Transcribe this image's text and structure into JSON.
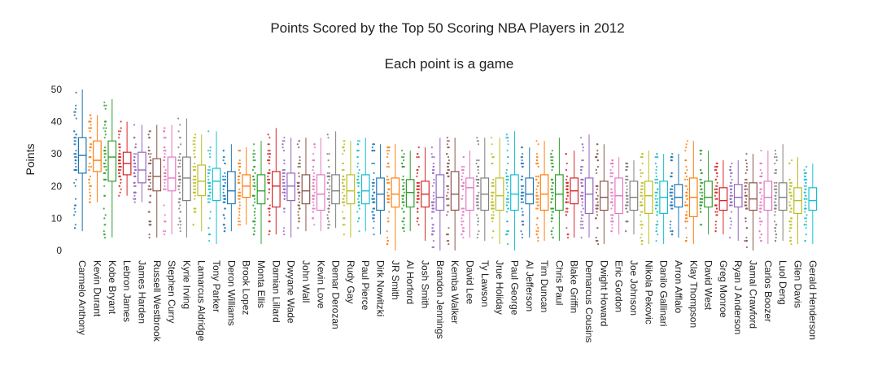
{
  "chart_data": {
    "type": "box",
    "title": "Points Scored by the Top 50 Scoring NBA Players in 2012",
    "subtitle": "Each point is a game",
    "xlabel": "",
    "ylabel": "Points",
    "ylim": [
      0,
      52
    ],
    "yticks": [
      0,
      10,
      20,
      30,
      40,
      50
    ],
    "grid": false,
    "legend": "none",
    "points_shown": "all",
    "palette": [
      "#1f77b4",
      "#ff7f0e",
      "#2ca02c",
      "#d62728",
      "#9467bd",
      "#8c564b",
      "#e377c2",
      "#7f7f7f",
      "#bcbd22",
      "#17becf"
    ],
    "series": [
      {
        "name": "Carmelo Anthony",
        "min": 6,
        "q1": 24,
        "median": 29.5,
        "q3": 35,
        "max": 50
      },
      {
        "name": "Kevin Durant",
        "min": 15,
        "q1": 24.5,
        "median": 28,
        "q3": 34,
        "max": 42
      },
      {
        "name": "Kobe Bryant",
        "min": 4,
        "q1": 21.5,
        "median": 29,
        "q3": 34,
        "max": 47
      },
      {
        "name": "Lebron James",
        "min": 17,
        "q1": 23.5,
        "median": 27,
        "q3": 30.5,
        "max": 40
      },
      {
        "name": "James Harden",
        "min": 15,
        "q1": 21,
        "median": 25,
        "q3": 30.5,
        "max": 39
      },
      {
        "name": "Russell Westbrook",
        "min": 4,
        "q1": 18.5,
        "median": 23,
        "q3": 28.5,
        "max": 39
      },
      {
        "name": "Stephen Curry",
        "min": 5,
        "q1": 18.5,
        "median": 22.5,
        "q3": 29,
        "max": 39
      },
      {
        "name": "Kyrie Irving",
        "min": 4,
        "q1": 15.5,
        "median": 22.5,
        "q3": 29,
        "max": 41
      },
      {
        "name": "Lamarcus Aldridge",
        "min": 6,
        "q1": 17,
        "median": 21.5,
        "q3": 26.5,
        "max": 36
      },
      {
        "name": "Tony Parker",
        "min": 2,
        "q1": 15.5,
        "median": 21.5,
        "q3": 25.5,
        "max": 37
      },
      {
        "name": "Deron Williams",
        "min": 6,
        "q1": 14.5,
        "median": 18.5,
        "q3": 24.5,
        "max": 33
      },
      {
        "name": "Brook Lopez",
        "min": 8,
        "q1": 16.5,
        "median": 20,
        "q3": 23.5,
        "max": 32
      },
      {
        "name": "Monta Ellis",
        "min": 2,
        "q1": 14.5,
        "median": 18.5,
        "q3": 23.5,
        "max": 34
      },
      {
        "name": "Damian Lillard",
        "min": 5,
        "q1": 13.5,
        "median": 20,
        "q3": 24.5,
        "max": 38
      },
      {
        "name": "Dwyane Wade",
        "min": 4,
        "q1": 15.5,
        "median": 20,
        "q3": 24,
        "max": 35
      },
      {
        "name": "John Wall",
        "min": 6,
        "q1": 14.5,
        "median": 18.5,
        "q3": 23.5,
        "max": 35
      },
      {
        "name": "Kevin Love",
        "min": 6,
        "q1": 12.5,
        "median": 17.5,
        "q3": 23.5,
        "max": 35
      },
      {
        "name": "Demar Derozan",
        "min": 7,
        "q1": 14.5,
        "median": 18.5,
        "q3": 23.5,
        "max": 37
      },
      {
        "name": "Rudy Gay",
        "min": 4,
        "q1": 14.5,
        "median": 18.5,
        "q3": 23.5,
        "max": 34
      },
      {
        "name": "Paul Pierce",
        "min": 6,
        "q1": 14.5,
        "median": 18.5,
        "q3": 23.5,
        "max": 35
      },
      {
        "name": "Dirk Nowitzki",
        "min": 5,
        "q1": 12.5,
        "median": 17.5,
        "q3": 22.5,
        "max": 33
      },
      {
        "name": "JR Smith",
        "min": 0,
        "q1": 13.5,
        "median": 17.5,
        "q3": 22.5,
        "max": 33
      },
      {
        "name": "Al Horford",
        "min": 6,
        "q1": 13.5,
        "median": 18,
        "q3": 22,
        "max": 31
      },
      {
        "name": "Josh Smith",
        "min": 3,
        "q1": 13.5,
        "median": 17.5,
        "q3": 21.5,
        "max": 32
      },
      {
        "name": "Brandon Jennings",
        "min": 0,
        "q1": 12.5,
        "median": 16.5,
        "q3": 23.5,
        "max": 35
      },
      {
        "name": "Kemba Walker",
        "min": 0,
        "q1": 12.5,
        "median": 17.5,
        "q3": 24.5,
        "max": 35
      },
      {
        "name": "David Lee",
        "min": 4,
        "q1": 12.5,
        "median": 19.5,
        "q3": 22.5,
        "max": 31
      },
      {
        "name": "Ty Lawson",
        "min": 3,
        "q1": 12.5,
        "median": 17.5,
        "q3": 22.5,
        "max": 35
      },
      {
        "name": "Jrue Holiday",
        "min": 2,
        "q1": 12.5,
        "median": 17,
        "q3": 22.5,
        "max": 35
      },
      {
        "name": "Paul George",
        "min": 0,
        "q1": 12.5,
        "median": 17.5,
        "q3": 23.5,
        "max": 37
      },
      {
        "name": "Al Jefferson",
        "min": 4,
        "q1": 14.5,
        "median": 17.5,
        "q3": 22.5,
        "max": 32
      },
      {
        "name": "Tim Duncan",
        "min": 3,
        "q1": 12.5,
        "median": 17.5,
        "q3": 23.5,
        "max": 34
      },
      {
        "name": "Chris Paul",
        "min": 3,
        "q1": 12.5,
        "median": 17.5,
        "q3": 23.5,
        "max": 35
      },
      {
        "name": "Blake Griffin",
        "min": 4,
        "q1": 14.5,
        "median": 18.5,
        "q3": 22.5,
        "max": 31
      },
      {
        "name": "Demarcus Cousins",
        "min": 4,
        "q1": 11.5,
        "median": 17.5,
        "q3": 22.5,
        "max": 36
      },
      {
        "name": "Dwight Howard",
        "min": 2,
        "q1": 12.5,
        "median": 16.5,
        "q3": 21.5,
        "max": 33
      },
      {
        "name": "Eric Gordon",
        "min": 5,
        "q1": 11.5,
        "median": 17,
        "q3": 22.5,
        "max": 29
      },
      {
        "name": "Joe Johnson",
        "min": 5,
        "q1": 12.5,
        "median": 16.5,
        "q3": 21.5,
        "max": 28
      },
      {
        "name": "Nikola Pekovic",
        "min": 2,
        "q1": 11.5,
        "median": 17,
        "q3": 21.5,
        "max": 31
      },
      {
        "name": "Danilo Gallinari",
        "min": 2,
        "q1": 11.5,
        "median": 16.5,
        "q3": 21.5,
        "max": 30
      },
      {
        "name": "Arron Afflalo",
        "min": 4,
        "q1": 13.5,
        "median": 16.5,
        "q3": 20.5,
        "max": 30
      },
      {
        "name": "Klay Thompson",
        "min": 2,
        "q1": 10.5,
        "median": 16.5,
        "q3": 22.5,
        "max": 34
      },
      {
        "name": "David West",
        "min": 5,
        "q1": 13.5,
        "median": 16.5,
        "q3": 21.5,
        "max": 31
      },
      {
        "name": "Greg Monroe",
        "min": 5,
        "q1": 12.5,
        "median": 15.5,
        "q3": 19.5,
        "max": 28
      },
      {
        "name": "Ryan J Anderson",
        "min": 3,
        "q1": 13.5,
        "median": 16.5,
        "q3": 20.5,
        "max": 28
      },
      {
        "name": "Jamal Crawford",
        "min": 0,
        "q1": 12.5,
        "median": 16,
        "q3": 21,
        "max": 30
      },
      {
        "name": "Carlos Boozer",
        "min": 2,
        "q1": 12.5,
        "median": 16.5,
        "q3": 21.5,
        "max": 31
      },
      {
        "name": "Luol Deng",
        "min": 3,
        "q1": 12.5,
        "median": 16.5,
        "q3": 21,
        "max": 33
      },
      {
        "name": "Glen Davis",
        "min": 2,
        "q1": 11.5,
        "median": 15.5,
        "q3": 19.5,
        "max": 29
      },
      {
        "name": "Gerald Henderson",
        "min": 2,
        "q1": 12.5,
        "median": 15.5,
        "q3": 19.5,
        "max": 27
      }
    ]
  }
}
